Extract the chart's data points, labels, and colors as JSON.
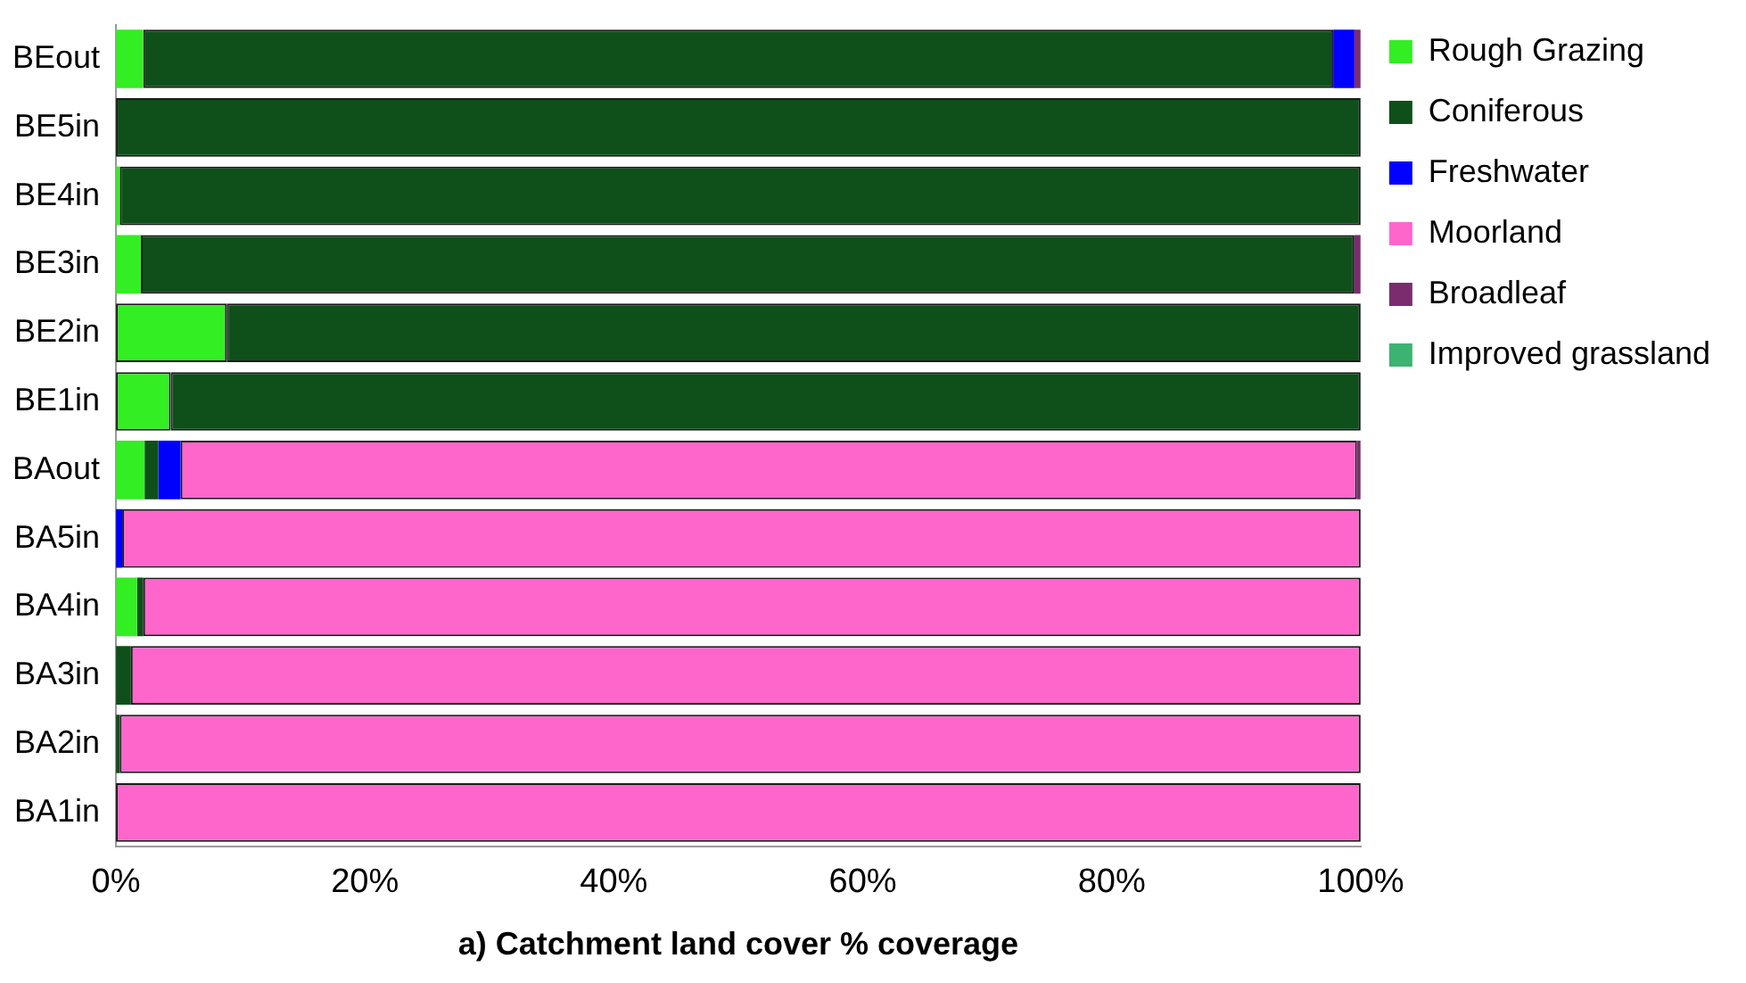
{
  "chart_data": {
    "type": "bar",
    "orientation": "horizontal",
    "stacked": true,
    "xlabel": "a) Catchment land cover % coverage",
    "categories": [
      "BEout",
      "BE5in",
      "BE4in",
      "BE3in",
      "BE2in",
      "BE1in",
      "BAout",
      "BA5in",
      "BA4in",
      "BA3in",
      "BA2in",
      "BA1in"
    ],
    "series": [
      {
        "name": "Rough Grazing",
        "color": "#33ee22",
        "values": [
          2.2,
          0,
          0.3,
          2.0,
          8.9,
          4.4,
          2.3,
          0,
          1.7,
          0,
          0,
          0
        ]
      },
      {
        "name": "Coniferous",
        "color": "#0e4f1a",
        "values": [
          95.6,
          100,
          99.7,
          97.5,
          91.1,
          95.6,
          1.1,
          0,
          0.5,
          1.2,
          0.3,
          0
        ]
      },
      {
        "name": "Freshwater",
        "color": "#0000ff",
        "values": [
          1.7,
          0,
          0,
          0,
          0,
          0,
          1.8,
          0.5,
          0,
          0,
          0,
          0
        ]
      },
      {
        "name": "Moorland",
        "color": "#ff66cc",
        "values": [
          0,
          0,
          0,
          0,
          0,
          0,
          94.5,
          99.5,
          97.8,
          98.8,
          99.7,
          100
        ]
      },
      {
        "name": "Broadleaf",
        "color": "#7b2c6e",
        "values": [
          0.5,
          0,
          0,
          0.5,
          0,
          0,
          0.3,
          0,
          0,
          0,
          0,
          0
        ]
      },
      {
        "name": "Improved grassland",
        "color": "#3cb371",
        "values": [
          0,
          0,
          0,
          0,
          0,
          0,
          0,
          0,
          0,
          0,
          0,
          0
        ]
      }
    ],
    "xlim": [
      0,
      100
    ],
    "xticks": [
      {
        "value": 0,
        "label": "0%"
      },
      {
        "value": 20,
        "label": "20%"
      },
      {
        "value": 40,
        "label": "40%"
      },
      {
        "value": 60,
        "label": "60%"
      },
      {
        "value": 80,
        "label": "80%"
      },
      {
        "value": 100,
        "label": "100%"
      }
    ],
    "grid": false,
    "legend": "right"
  }
}
